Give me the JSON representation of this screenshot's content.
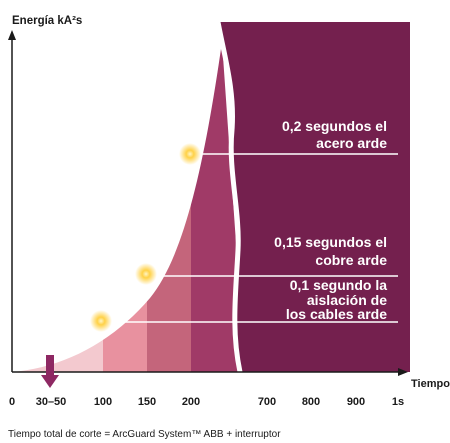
{
  "y_axis_label": "Energía kA²s",
  "x_axis_label": "Tiempo",
  "x_ticks": [
    "0",
    "30–50",
    "100",
    "150",
    "200",
    "700",
    "800",
    "900",
    "1s"
  ],
  "annotations": [
    {
      "lines": [
        "0,2 segundos el",
        "acero arde"
      ]
    },
    {
      "lines": [
        "0,15 segundos el",
        "cobre arde"
      ]
    },
    {
      "lines": [
        "0,1 segundo la",
        "aislación de",
        "los cables arde"
      ]
    }
  ],
  "footer_note": "Tiempo total de corte = ArcGuard System™ ABB + interruptor",
  "colors": {
    "band_1": "#f3c9cf",
    "band_2": "#e8919f",
    "band_3": "#c4657b",
    "band_4": "#a03a67",
    "right_block": "#74204e",
    "axis": "#1a1a1a",
    "marker_arrow": "#8e2863",
    "flash": "#ffcc33"
  }
}
